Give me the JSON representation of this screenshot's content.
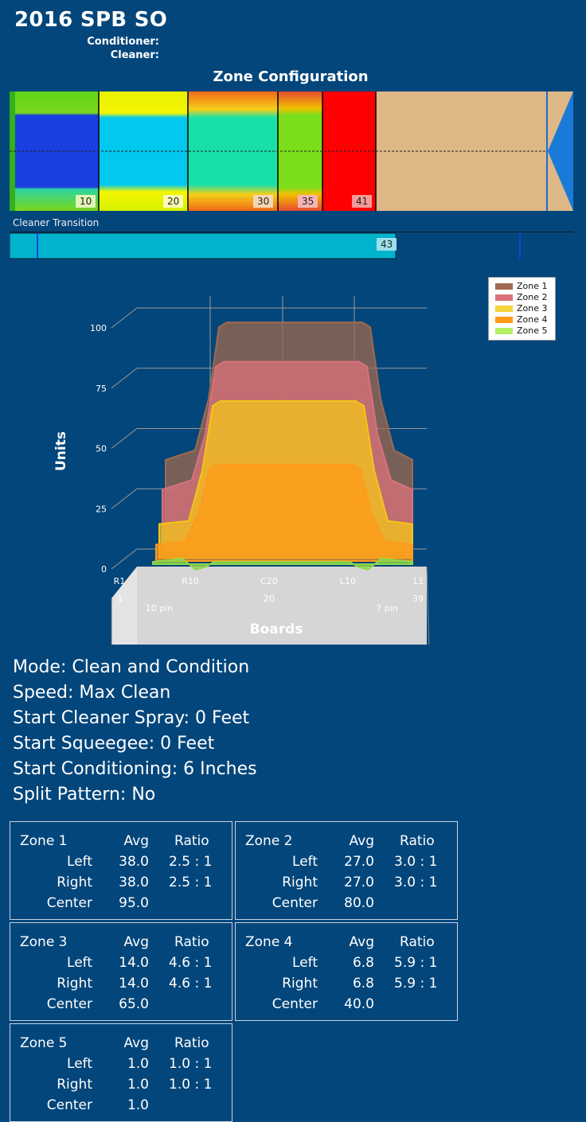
{
  "header": {
    "title": "2016 SPB SO",
    "conditioner_label": "Conditioner:",
    "cleaner_label": "Cleaner:"
  },
  "zone_config": {
    "title": "Zone Configuration",
    "zone_end_boards": [
      "10",
      "20",
      "30",
      "35",
      "41"
    ]
  },
  "cleaner_transition": {
    "label": "Cleaner Transition",
    "value": "43"
  },
  "chart_data": {
    "type": "area",
    "ylabel": "Units",
    "xlabel": "Boards",
    "ylim": [
      0,
      100
    ],
    "y_ticks": [
      "0",
      "25",
      "50",
      "75",
      "100"
    ],
    "x_tick_labels": [
      "R1",
      "R10",
      "C20",
      "L10",
      "L1"
    ],
    "x_sub_labels": [
      "1",
      "20",
      "39"
    ],
    "pin_labels": [
      "10 pin",
      "7 pin"
    ],
    "legend_position": "top-right",
    "series": [
      {
        "name": "Zone 1",
        "color": "#a0694e",
        "left": 38.0,
        "center": 95.0,
        "right": 38.0
      },
      {
        "name": "Zone 2",
        "color": "#d9727a",
        "left": 27.0,
        "center": 80.0,
        "right": 27.0
      },
      {
        "name": "Zone 3",
        "color": "#f5c518",
        "left": 14.0,
        "center": 65.0,
        "right": 14.0
      },
      {
        "name": "Zone 4",
        "color": "#ff9a1a",
        "left": 6.8,
        "center": 40.0,
        "right": 6.8
      },
      {
        "name": "Zone 5",
        "color": "#8fd84a",
        "left": 1.0,
        "center": 1.0,
        "right": 1.0
      }
    ]
  },
  "settings": {
    "mode": "Mode: Clean and Condition",
    "speed": "Speed: Max Clean",
    "start_cleaner_spray": "Start Cleaner Spray: 0 Feet",
    "start_squeegee": "Start Squeegee: 0 Feet",
    "start_conditioning": "Start Conditioning: 6 Inches",
    "split_pattern": "Split Pattern: No"
  },
  "zone_table": {
    "avg_header": "Avg",
    "ratio_header": "Ratio",
    "left_label": "Left",
    "right_label": "Right",
    "center_label": "Center",
    "zones": [
      {
        "name": "Zone 1",
        "left_avg": "38.0",
        "left_ratio": "2.5 : 1",
        "right_avg": "38.0",
        "right_ratio": "2.5 : 1",
        "center_avg": "95.0"
      },
      {
        "name": "Zone 2",
        "left_avg": "27.0",
        "left_ratio": "3.0 : 1",
        "right_avg": "27.0",
        "right_ratio": "3.0 : 1",
        "center_avg": "80.0"
      },
      {
        "name": "Zone 3",
        "left_avg": "14.0",
        "left_ratio": "4.6 : 1",
        "right_avg": "14.0",
        "right_ratio": "4.6 : 1",
        "center_avg": "65.0"
      },
      {
        "name": "Zone 4",
        "left_avg": "6.8",
        "left_ratio": "5.9 : 1",
        "right_avg": "6.8",
        "right_ratio": "5.9 : 1",
        "center_avg": "40.0"
      },
      {
        "name": "Zone 5",
        "left_avg": "1.0",
        "left_ratio": "1.0 : 1",
        "right_avg": "1.0",
        "right_ratio": "1.0 : 1",
        "center_avg": "1.0"
      }
    ]
  }
}
